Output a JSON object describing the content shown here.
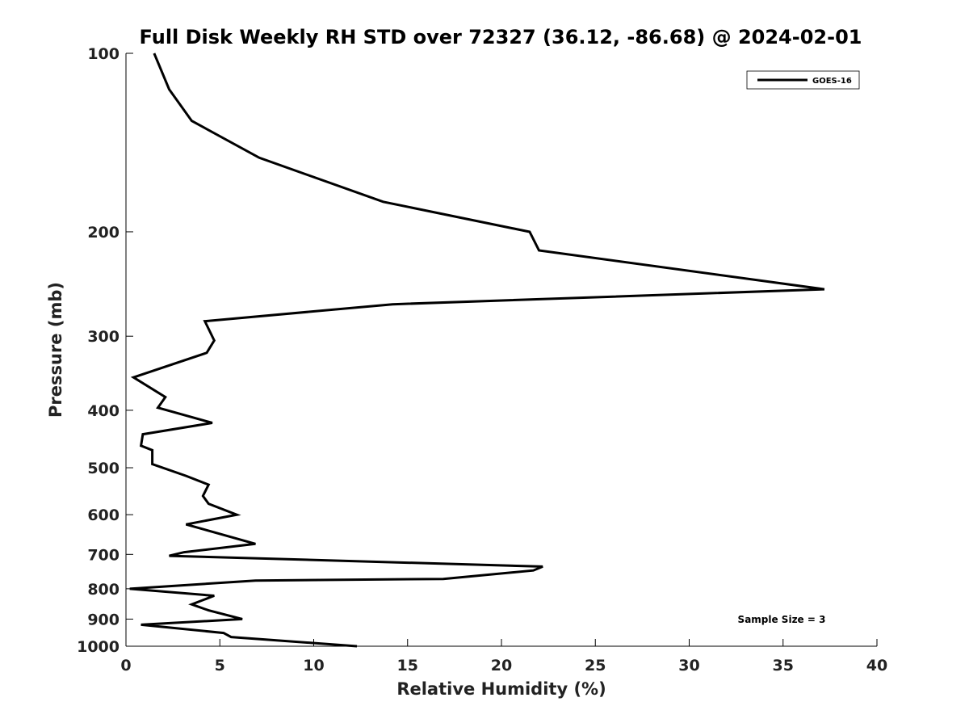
{
  "chart_data": {
    "type": "line",
    "title": "Full Disk Weekly RH STD over 72327 (36.12, -86.68) @ 2024-02-01",
    "xlabel": "Relative Humidity (%)",
    "ylabel": "Pressure (mb)",
    "xlim": [
      0,
      40
    ],
    "ylim": [
      100,
      1000
    ],
    "yscale": "log",
    "y_reversed": true,
    "grid": false,
    "xticks": [
      0,
      5,
      10,
      15,
      20,
      25,
      30,
      35,
      40
    ],
    "yticks": [
      100,
      200,
      300,
      400,
      500,
      600,
      700,
      800,
      900,
      1000
    ],
    "legend_position": "top-right",
    "series": [
      {
        "name": "GOES-16",
        "color": "#000000",
        "x": [
          1.5,
          2.3,
          3.5,
          7.1,
          13.7,
          21.5,
          22.0,
          37.2,
          14.2,
          4.2,
          4.7,
          4.3,
          0.4,
          2.1,
          1.7,
          4.6,
          0.9,
          0.8,
          1.4,
          1.4,
          1.4,
          3.2,
          4.4,
          4.1,
          4.4,
          5.9,
          3.2,
          6.9,
          3.1,
          2.3,
          22.2,
          21.7,
          16.9,
          6.9,
          0.2,
          4.7,
          3.5,
          4.4,
          6.2,
          0.8,
          5.2,
          5.6,
          12.3
        ],
        "y": [
          100,
          115,
          130,
          150,
          178,
          200,
          215,
          250,
          265,
          283,
          305,
          320,
          352,
          380,
          396,
          420,
          439,
          459,
          467,
          483,
          493,
          516,
          534,
          558,
          575,
          600,
          623,
          672,
          694,
          704,
          734,
          745,
          770,
          775,
          800,
          822,
          850,
          870,
          900,
          920,
          950,
          965,
          1000
        ]
      }
    ],
    "annotations": [
      "Sample Size = 3"
    ]
  }
}
